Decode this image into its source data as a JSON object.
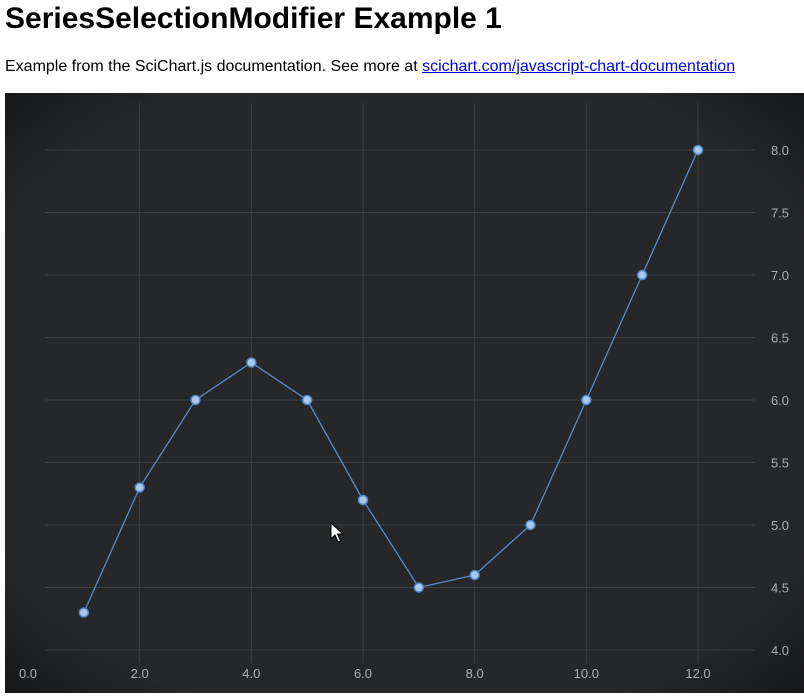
{
  "page": {
    "title": "SeriesSelectionModifier Example 1",
    "description_prefix": "Example from the SciChart.js documentation. See more at ",
    "link_text": "scichart.com/javascript-chart-documentation"
  },
  "colors": {
    "chart_background": "#1c1c1e",
    "plot_background": "#262729",
    "series_line": "#5b8ac4",
    "point_fill": "#a9c8ee",
    "point_stroke": "#4f86c6",
    "grid_major": "#3c3e42",
    "tick_text": "#aab0b8"
  },
  "chart_data": {
    "type": "line",
    "x": [
      1,
      2,
      3,
      4,
      5,
      6,
      7,
      8,
      9,
      10,
      11,
      12
    ],
    "y": [
      4.3,
      5.3,
      6.0,
      6.3,
      6.0,
      5.2,
      4.5,
      4.6,
      5.0,
      6.0,
      7.0,
      8.0
    ],
    "xlim": [
      0,
      13
    ],
    "ylim": [
      3.9,
      8.2
    ],
    "x_ticks": [
      "0.0",
      "2.0",
      "4.0",
      "6.0",
      "8.0",
      "10.0",
      "12.0"
    ],
    "x_tick_values": [
      0,
      2,
      4,
      6,
      8,
      10,
      12
    ],
    "y_ticks": [
      "4.0",
      "4.5",
      "5.0",
      "5.5",
      "6.0",
      "6.5",
      "7.0",
      "7.5",
      "8.0"
    ],
    "y_tick_values": [
      4.0,
      4.5,
      5.0,
      5.5,
      6.0,
      6.5,
      7.0,
      7.5,
      8.0
    ],
    "y_axis_position": "right",
    "grid": true,
    "markers": "ellipse"
  }
}
